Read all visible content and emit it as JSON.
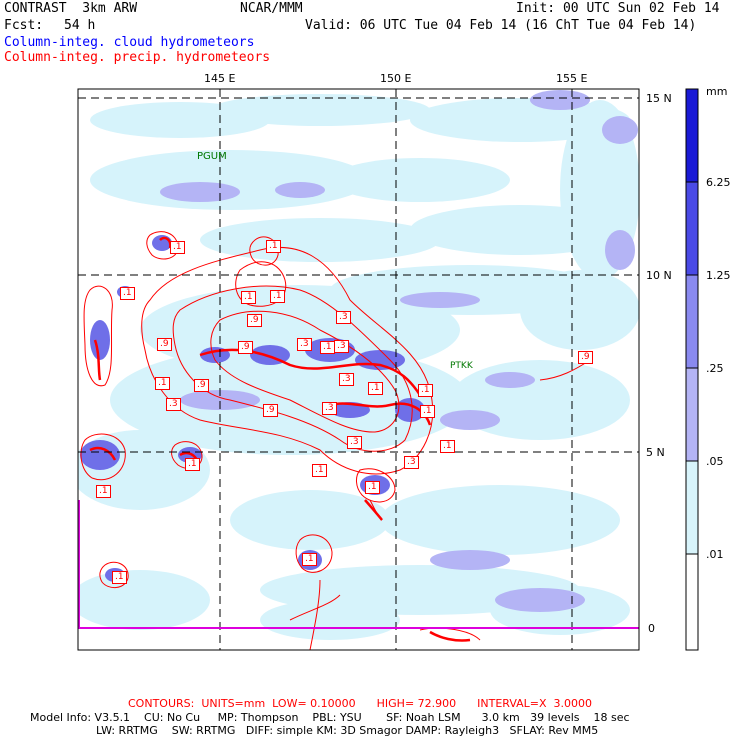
{
  "header": {
    "model": "CONTRAST  3km ARW",
    "org": "NCAR/MMM",
    "init": "Init: 00 UTC Sun 02 Feb 14",
    "fcst_label": "Fcst:",
    "fcst_value": "54 h",
    "valid": "Valid: 06 UTC Tue 04 Feb 14 (16 ChT Tue 04 Feb 14)",
    "field1": "Column-integ. cloud hydrometeors",
    "field2": "Column-integ. precip. hydrometeors"
  },
  "axes": {
    "lon_labels": [
      "145 E",
      "150 E",
      "155 E"
    ],
    "lat_labels": [
      "15 N",
      "10 N",
      "5 N",
      "0"
    ]
  },
  "stations": [
    "PGUM",
    "PTKK"
  ],
  "contour_labels": [
    ".1",
    ".1",
    ".1",
    ".1",
    ".1",
    ".3",
    ".3",
    ".9",
    ".9",
    ".9",
    ".3",
    ".1",
    ".9",
    ".3",
    ".1",
    ".3",
    ".1",
    ".9",
    ".3",
    ".3",
    ".1",
    ".3",
    ".1",
    ".1",
    ".1",
    ".1",
    ".1",
    ".9",
    ".1",
    ".1",
    ".1"
  ],
  "colorbar": {
    "unit": "mm",
    "levels": [
      "6.25",
      "1.25",
      ".25",
      ".05",
      ".01"
    ],
    "colors": [
      "#1a1ad6",
      "#4a4ae6",
      "#8a8af0",
      "#b4b4f5",
      "#d8f4fb",
      "#ffffff"
    ]
  },
  "footer": {
    "contours": "CONTOURS:  UNITS=mm  LOW= 0.10000      HIGH= 72.900      INTERVAL=X  3.0000",
    "line1": "Model Info: V3.5.1    CU: No Cu     MP: Thompson    PBL: YSU       SF: Noah LSM      3.0 km   39 levels    18 sec",
    "line2": "LW: RRTMG    SW: RRTMG   DIFF: simple KM: 3D Smagor DAMP: Rayleigh3   SFLAY: Rev MM5"
  }
}
